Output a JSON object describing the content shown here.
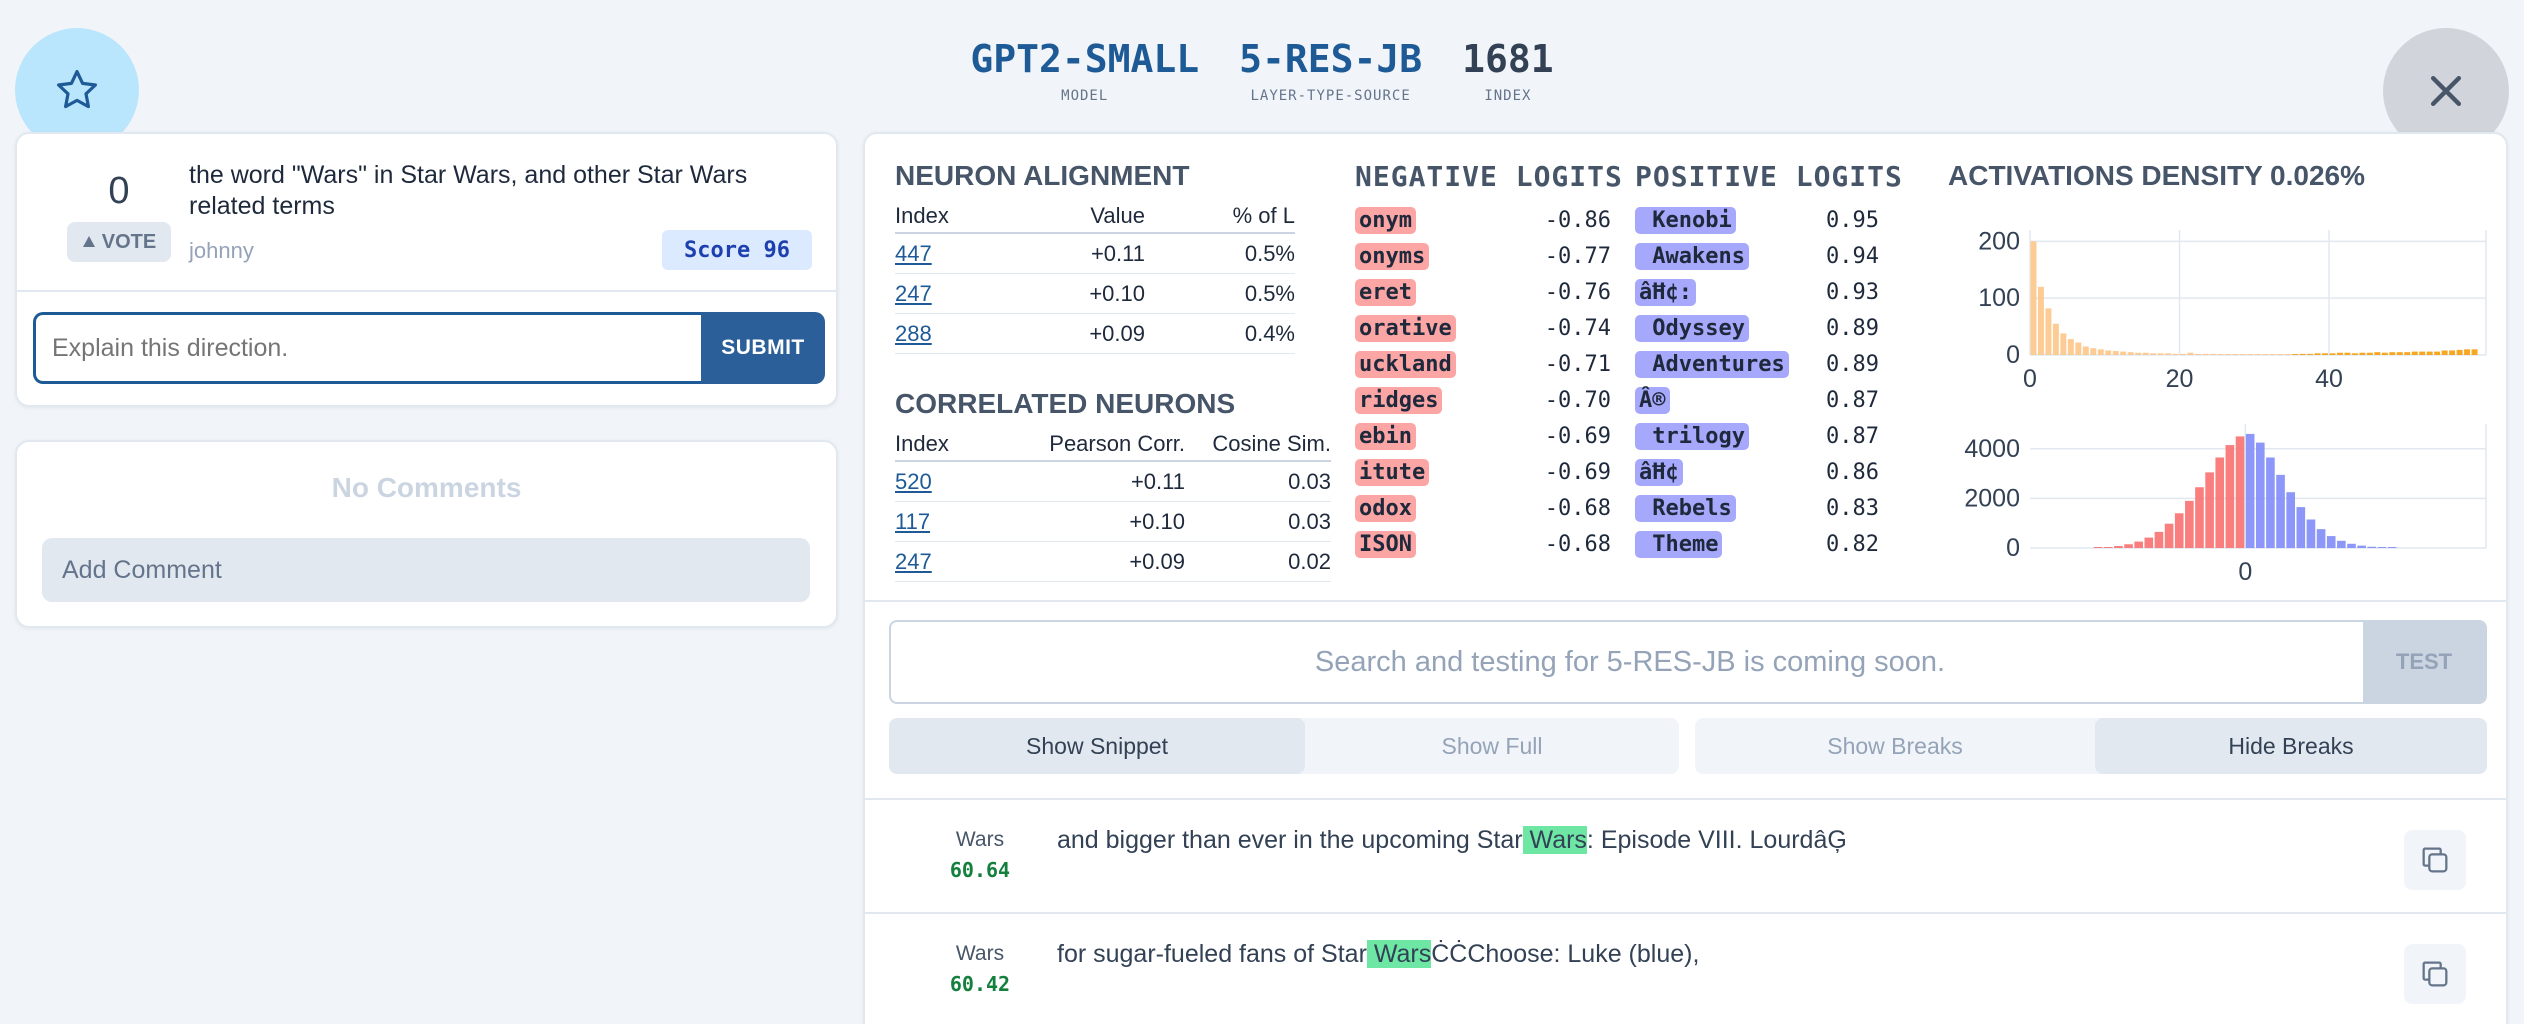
{
  "header": {
    "model": {
      "value": "GPT2-SMALL",
      "label": "MODEL"
    },
    "source": {
      "value": "5-RES-JB",
      "label": "LAYER-TYPE-SOURCE"
    },
    "index": {
      "value": "1681",
      "label": "INDEX"
    }
  },
  "explanation": {
    "votes": "0",
    "vote_label": "VOTE",
    "text": "the word \"Wars\" in Star Wars, and other Star Wars related terms",
    "author": "johnny",
    "score": "Score 96",
    "input_placeholder": "Explain this direction.",
    "submit_label": "SUBMIT"
  },
  "comments": {
    "empty_label": "No Comments",
    "add_placeholder": "Add Comment"
  },
  "neuron_alignment": {
    "title": "NEURON ALIGNMENT",
    "headers": [
      "Index",
      "Value",
      "% of L"
    ],
    "rows": [
      {
        "index": "447",
        "value": "+0.11",
        "pct": "0.5%"
      },
      {
        "index": "247",
        "value": "+0.10",
        "pct": "0.5%"
      },
      {
        "index": "288",
        "value": "+0.09",
        "pct": "0.4%"
      }
    ]
  },
  "correlated_neurons": {
    "title": "CORRELATED NEURONS",
    "headers": [
      "Index",
      "Pearson Corr.",
      "Cosine Sim."
    ],
    "rows": [
      {
        "index": "520",
        "pearson": "+0.11",
        "cosine": "0.03"
      },
      {
        "index": "117",
        "pearson": "+0.10",
        "cosine": "0.03"
      },
      {
        "index": "247",
        "pearson": "+0.09",
        "cosine": "0.02"
      }
    ]
  },
  "negative_logits": {
    "title": "NEGATIVE LOGITS",
    "rows": [
      {
        "token": "onym",
        "value": "-0.86"
      },
      {
        "token": "onyms",
        "value": "-0.77"
      },
      {
        "token": "eret",
        "value": "-0.76"
      },
      {
        "token": "orative",
        "value": "-0.74"
      },
      {
        "token": "uckland",
        "value": "-0.71"
      },
      {
        "token": "ridges",
        "value": "-0.70"
      },
      {
        "token": "ebin",
        "value": "-0.69"
      },
      {
        "token": "itute",
        "value": "-0.69"
      },
      {
        "token": "odox",
        "value": "-0.68"
      },
      {
        "token": "ISON",
        "value": "-0.68"
      }
    ]
  },
  "positive_logits": {
    "title": "POSITIVE LOGITS",
    "rows": [
      {
        "token": " Kenobi",
        "value": "0.95"
      },
      {
        "token": " Awakens",
        "value": "0.94"
      },
      {
        "token": "âĦ¢:",
        "value": "0.93"
      },
      {
        "token": " Odyssey",
        "value": "0.89"
      },
      {
        "token": " Adventures",
        "value": "0.89"
      },
      {
        "token": "Â®",
        "value": "0.87"
      },
      {
        "token": " trilogy",
        "value": "0.87"
      },
      {
        "token": "âĦ¢",
        "value": "0.86"
      },
      {
        "token": " Rebels",
        "value": "0.83"
      },
      {
        "token": " Theme",
        "value": "0.82"
      }
    ]
  },
  "activations_density": {
    "title": "ACTIVATIONS DENSITY 0.026%"
  },
  "chart_data": [
    {
      "type": "bar",
      "title": "",
      "ylim": [
        0,
        220
      ],
      "xlim": [
        0,
        61
      ],
      "x_ticks": [
        "0",
        "20",
        "40"
      ],
      "y_ticks": [
        "0",
        "100",
        "200"
      ],
      "grid": true,
      "color": "#fdc78a",
      "bins": [
        {
          "x": 0.5,
          "v": 200
        },
        {
          "x": 1.5,
          "v": 120
        },
        {
          "x": 2.5,
          "v": 82
        },
        {
          "x": 3.5,
          "v": 55
        },
        {
          "x": 4.5,
          "v": 38
        },
        {
          "x": 5.5,
          "v": 28
        },
        {
          "x": 6.5,
          "v": 22
        },
        {
          "x": 7.5,
          "v": 15
        },
        {
          "x": 8.5,
          "v": 12
        },
        {
          "x": 9.5,
          "v": 10
        },
        {
          "x": 10.5,
          "v": 8
        },
        {
          "x": 11.5,
          "v": 7
        },
        {
          "x": 12.5,
          "v": 6
        },
        {
          "x": 13.5,
          "v": 5
        },
        {
          "x": 14.5,
          "v": 4
        },
        {
          "x": 15.5,
          "v": 4
        },
        {
          "x": 16.5,
          "v": 3
        },
        {
          "x": 17.5,
          "v": 3
        },
        {
          "x": 18.5,
          "v": 3
        },
        {
          "x": 19.5,
          "v": 2
        },
        {
          "x": 20.5,
          "v": 2
        },
        {
          "x": 21.5,
          "v": 4
        },
        {
          "x": 22.5,
          "v": 2
        },
        {
          "x": 23.5,
          "v": 2
        },
        {
          "x": 24.5,
          "v": 2
        },
        {
          "x": 25.5,
          "v": 1
        },
        {
          "x": 26.5,
          "v": 1
        },
        {
          "x": 27.5,
          "v": 1
        },
        {
          "x": 28.5,
          "v": 1
        },
        {
          "x": 29.5,
          "v": 1
        },
        {
          "x": 30.5,
          "v": 1
        },
        {
          "x": 31.5,
          "v": 1
        },
        {
          "x": 32.5,
          "v": 1
        },
        {
          "x": 33.5,
          "v": 1
        },
        {
          "x": 34.5,
          "v": 1
        },
        {
          "x": 35.5,
          "v": 1
        },
        {
          "x": 36.5,
          "v": 2
        },
        {
          "x": 37.5,
          "v": 2
        },
        {
          "x": 38.5,
          "v": 3
        },
        {
          "x": 39.5,
          "v": 3
        },
        {
          "x": 40.5,
          "v": 3
        },
        {
          "x": 41.5,
          "v": 4
        },
        {
          "x": 42.5,
          "v": 4
        },
        {
          "x": 43.5,
          "v": 3
        },
        {
          "x": 44.5,
          "v": 4
        },
        {
          "x": 45.5,
          "v": 4
        },
        {
          "x": 46.5,
          "v": 5
        },
        {
          "x": 47.5,
          "v": 4
        },
        {
          "x": 48.5,
          "v": 5
        },
        {
          "x": 49.5,
          "v": 5
        },
        {
          "x": 50.5,
          "v": 5
        },
        {
          "x": 51.5,
          "v": 6
        },
        {
          "x": 52.5,
          "v": 6
        },
        {
          "x": 53.5,
          "v": 6
        },
        {
          "x": 54.5,
          "v": 6
        },
        {
          "x": 55.5,
          "v": 8
        },
        {
          "x": 56.5,
          "v": 8
        },
        {
          "x": 57.5,
          "v": 9
        },
        {
          "x": 58.5,
          "v": 10
        },
        {
          "x": 59.5,
          "v": 10
        }
      ]
    },
    {
      "type": "bar",
      "title": "",
      "ylim": [
        0,
        5000
      ],
      "xlim": [
        -0.85,
        0.95
      ],
      "x_ticks": [
        "0"
      ],
      "y_ticks": [
        "0",
        "2000",
        "4000"
      ],
      "grid": true,
      "series": [
        {
          "name": "negative",
          "color": "#f87171"
        },
        {
          "name": "positive",
          "color": "#818cf8"
        }
      ],
      "bins": [
        {
          "x": -0.58,
          "v": 20
        },
        {
          "x": -0.54,
          "v": 40
        },
        {
          "x": -0.5,
          "v": 80
        },
        {
          "x": -0.46,
          "v": 150
        },
        {
          "x": -0.42,
          "v": 260
        },
        {
          "x": -0.38,
          "v": 420
        },
        {
          "x": -0.34,
          "v": 650
        },
        {
          "x": -0.3,
          "v": 980
        },
        {
          "x": -0.26,
          "v": 1400
        },
        {
          "x": -0.22,
          "v": 1900
        },
        {
          "x": -0.18,
          "v": 2450
        },
        {
          "x": -0.14,
          "v": 3050
        },
        {
          "x": -0.1,
          "v": 3650
        },
        {
          "x": -0.06,
          "v": 4150
        },
        {
          "x": -0.02,
          "v": 4500
        },
        {
          "x": 0.02,
          "v": 4600
        },
        {
          "x": 0.06,
          "v": 4250
        },
        {
          "x": 0.1,
          "v": 3650
        },
        {
          "x": 0.14,
          "v": 2950
        },
        {
          "x": 0.18,
          "v": 2250
        },
        {
          "x": 0.22,
          "v": 1650
        },
        {
          "x": 0.26,
          "v": 1150
        },
        {
          "x": 0.3,
          "v": 760
        },
        {
          "x": 0.34,
          "v": 480
        },
        {
          "x": 0.38,
          "v": 290
        },
        {
          "x": 0.42,
          "v": 170
        },
        {
          "x": 0.46,
          "v": 95
        },
        {
          "x": 0.5,
          "v": 50
        },
        {
          "x": 0.54,
          "v": 25
        },
        {
          "x": 0.58,
          "v": 12
        }
      ]
    }
  ],
  "search": {
    "placeholder": "Search and testing for 5-RES-JB is coming soon.",
    "test_label": "TEST"
  },
  "toggles": {
    "show_snippet": "Show Snippet",
    "show_full": "Show Full",
    "show_breaks": "Show Breaks",
    "hide_breaks": "Hide Breaks"
  },
  "snippets": [
    {
      "token": "Wars",
      "activation": "60.64",
      "before": "and bigger than ever in the upcoming Star",
      "highlight": " Wars",
      "after": ": Episode VIII. LourdâĢ"
    },
    {
      "token": "Wars",
      "activation": "60.42",
      "before": "for sugar-fueled fans of Star",
      "highlight": " Wars",
      "after": "ĊĊChoose: Luke (blue),"
    }
  ],
  "colors": {
    "accent": "#1e5a96",
    "negative_token": "#fca5a5",
    "positive_token": "#a5a8fb",
    "highlight": "#6ee7a5"
  }
}
